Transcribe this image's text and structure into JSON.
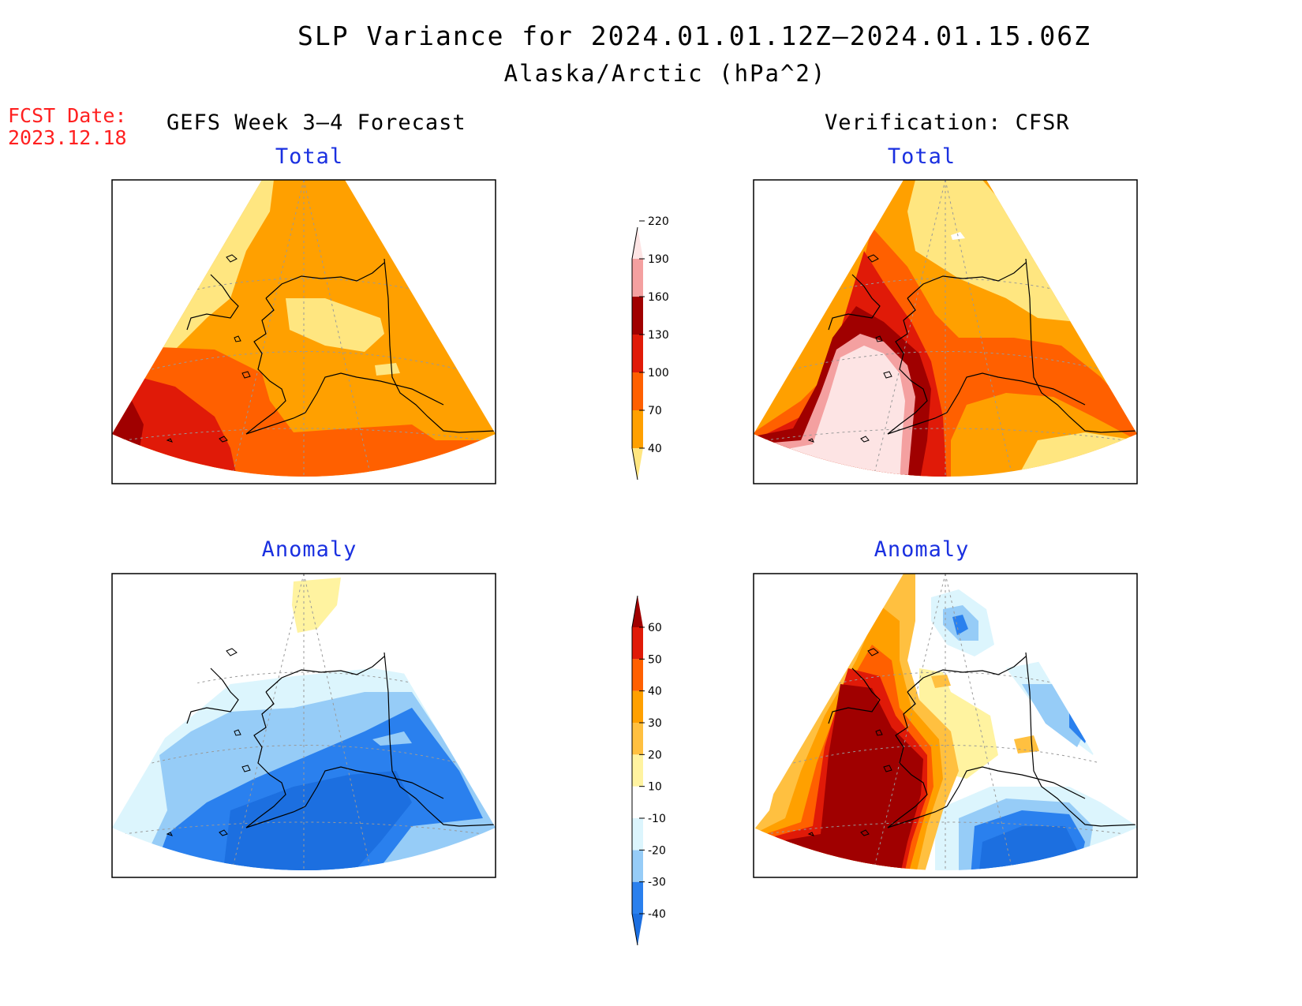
{
  "title": "SLP Variance for 2024.01.01.12Z–2024.01.15.06Z",
  "subtitle": "Alaska/Arctic (hPa^2)",
  "fcst_date_label": "FCST Date:",
  "fcst_date": "2023.12.18",
  "left_column_title": "GEFS Week 3–4 Forecast",
  "right_column_title": "Verification: CFSR",
  "panels": {
    "fcst_total": "Total",
    "verif_total": "Total",
    "fcst_anomaly": "Anomaly",
    "verif_anomaly": "Anomaly"
  },
  "total_colorbar": {
    "labels": [
      "40",
      "70",
      "100",
      "130",
      "160",
      "190",
      "220"
    ],
    "colors": [
      "#ffe680",
      "#ffa000",
      "#ff6000",
      "#e01a08",
      "#a00000",
      "#f4a0a0",
      "#fde4e4"
    ]
  },
  "anomaly_colorbar": {
    "labels": [
      "-40",
      "-30",
      "-20",
      "-10",
      "10",
      "20",
      "30",
      "40",
      "50",
      "60"
    ],
    "colors": [
      "#1c6fe0",
      "#2a80ee",
      "#96ccf7",
      "#dcf5fd",
      "#ffffff",
      "#fff3a0",
      "#ffc040",
      "#ffa000",
      "#ff6000",
      "#e01a08",
      "#a00000"
    ]
  },
  "palette": {
    "yellow": "#ffe680",
    "orange": "#ffa000",
    "dark_orange": "#ff6000",
    "red": "#e01a08",
    "dark_red": "#a00000",
    "pink": "#f4a0a0",
    "light_pink": "#fde4e4",
    "light_cyan": "#dcf5fd",
    "light_blue": "#96ccf7",
    "blue": "#2a80ee",
    "dark_blue": "#1c6fe0",
    "pale_yellow": "#fff3a0",
    "gold": "#ffc040"
  }
}
